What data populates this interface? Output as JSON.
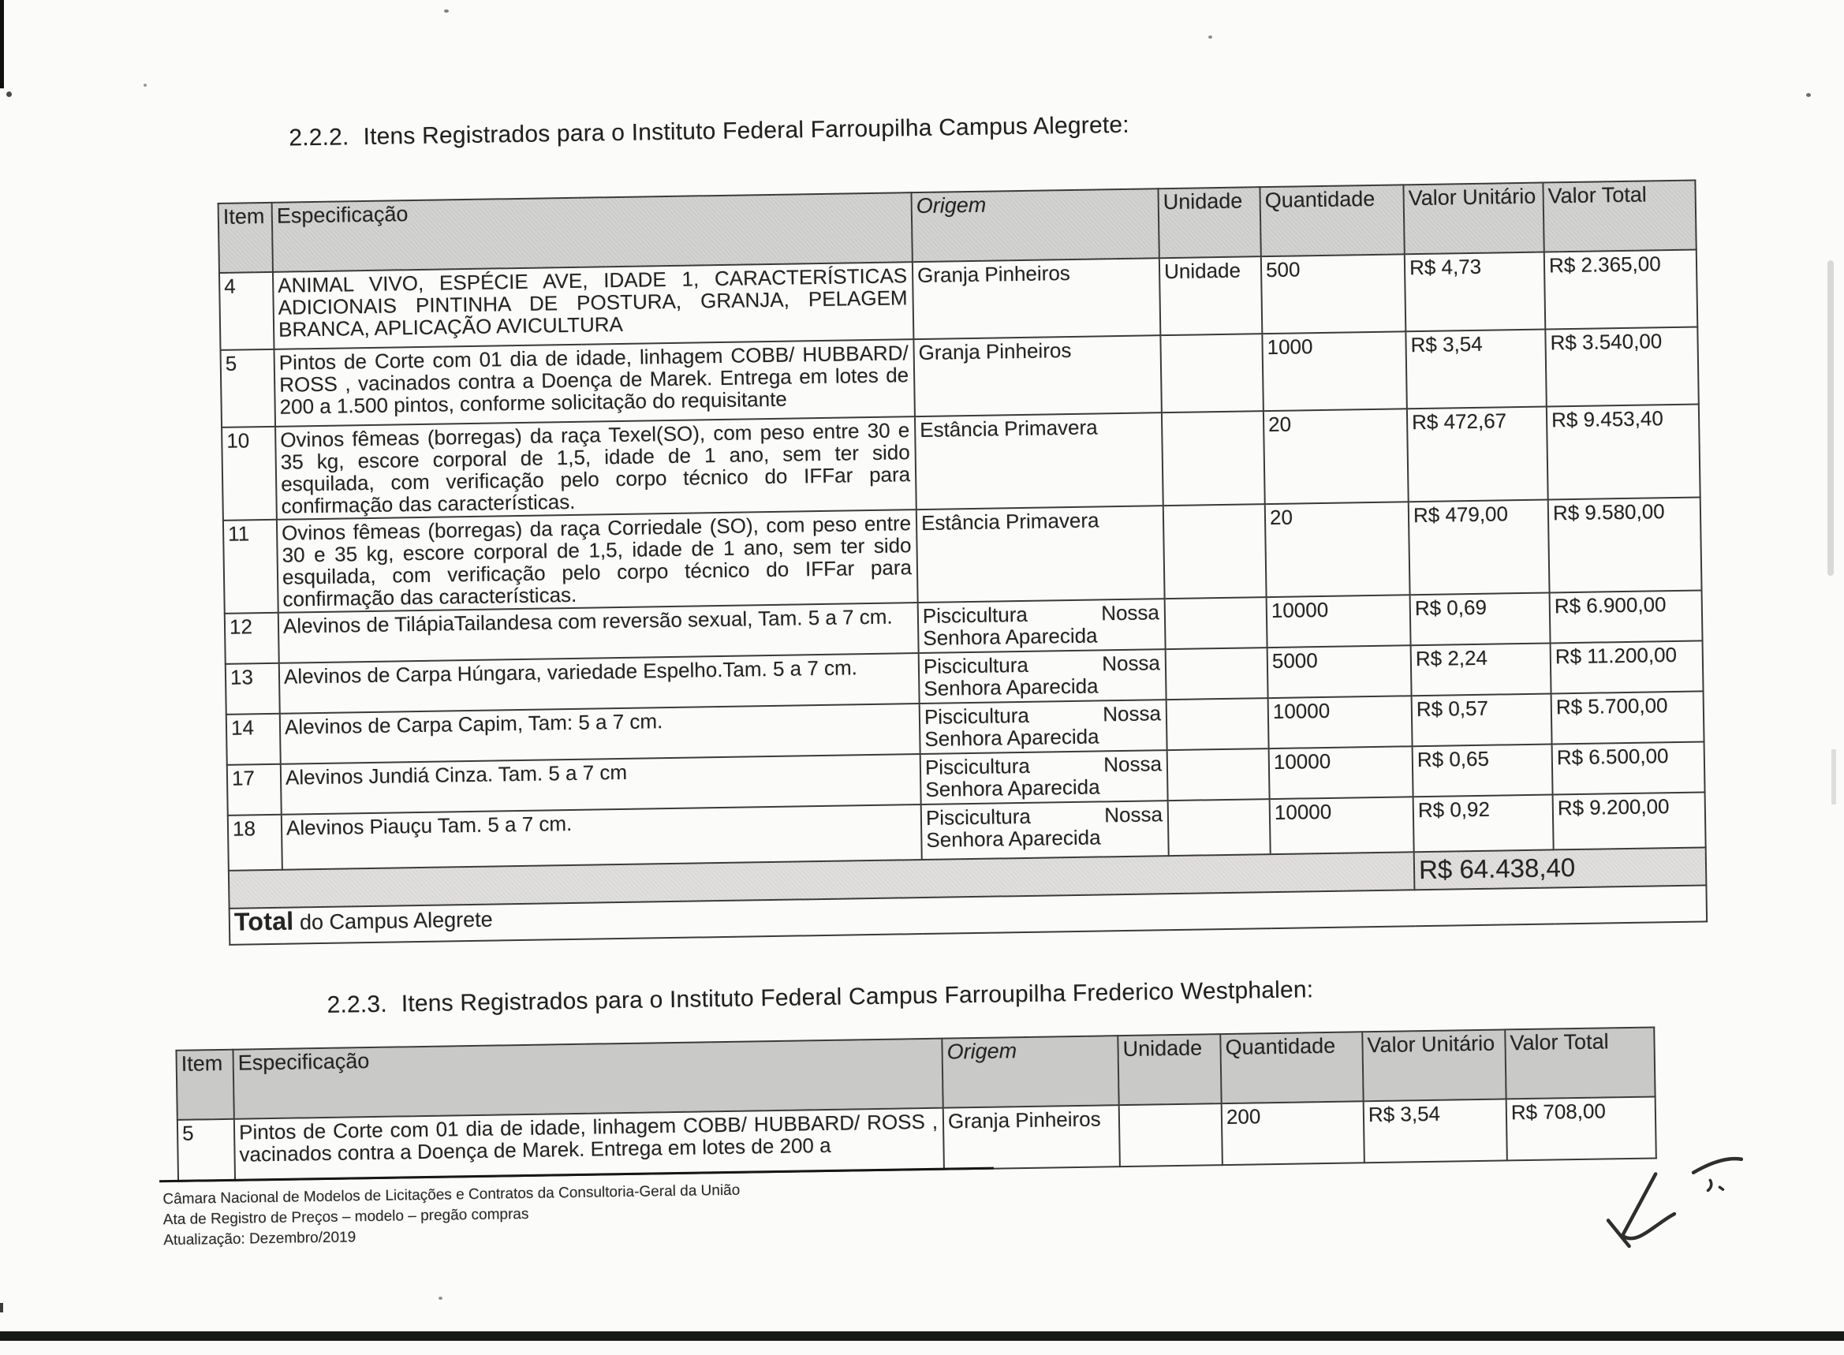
{
  "section1": {
    "number": "2.2.2.",
    "title": "Itens Registrados para o Instituto Federal Farroupilha Campus Alegrete:"
  },
  "section2": {
    "number": "2.2.3.",
    "title": "Itens Registrados para o Instituto Federal Campus Farroupilha Frederico Westphalen:"
  },
  "headers": {
    "item": "Item",
    "espec": "Especificação",
    "origem": "Origem",
    "unidade": "Unidade",
    "quantidade": "Quantidade",
    "valor_unitario": "Valor Unitário",
    "valor_total": "Valor Total"
  },
  "table1": {
    "rows": [
      {
        "item": "4",
        "espec": "ANIMAL VIVO, ESPÉCIE AVE, IDADE 1, CARACTERÍSTICAS ADICIONAIS PINTINHA DE POSTURA, GRANJA, PELAGEM BRANCA, APLICAÇÃO AVICULTURA",
        "origem": "Granja Pinheiros",
        "unidade": "Unidade",
        "quantidade": "500",
        "valor_unitario": "R$ 4,73",
        "valor_total": "R$ 2.365,00"
      },
      {
        "item": "5",
        "espec": "Pintos de Corte com 01 dia de idade, linhagem COBB/ HUBBARD/ ROSS , vacinados contra a Doença de Marek. Entrega em lotes de 200 a 1.500 pintos, conforme solicitação do requisitante",
        "origem": "Granja Pinheiros",
        "unidade": "",
        "quantidade": "1000",
        "valor_unitario": "R$ 3,54",
        "valor_total": "R$ 3.540,00"
      },
      {
        "item": "10",
        "espec": "Ovinos fêmeas (borregas) da raça Texel(SO), com peso entre 30 e 35 kg, escore corporal de 1,5, idade de 1 ano, sem ter sido esquilada, com verificação pelo corpo técnico do IFFar para confirmação das características.",
        "origem": "Estância Primavera",
        "unidade": "",
        "quantidade": "20",
        "valor_unitario": "R$ 472,67",
        "valor_total": "R$ 9.453,40"
      },
      {
        "item": "11",
        "espec": "Ovinos fêmeas (borregas) da raça Corriedale (SO), com peso entre 30 e 35 kg, escore corporal de 1,5, idade de 1 ano, sem ter sido esquilada, com verificação pelo corpo técnico do IFFar para confirmação das características.",
        "origem": "Estância Primavera",
        "unidade": "",
        "quantidade": "20",
        "valor_unitario": "R$ 479,00",
        "valor_total": "R$ 9.580,00"
      },
      {
        "item": "12",
        "espec": "Alevinos de TilápiaTailandesa com reversão sexual, Tam. 5 a 7 cm.",
        "origem": "Piscicultura Nossa|Senhora Aparecida",
        "unidade": "",
        "quantidade": "10000",
        "valor_unitario": "R$ 0,69",
        "valor_total": "R$ 6.900,00"
      },
      {
        "item": "13",
        "espec": "Alevinos de Carpa Húngara, variedade Espelho.Tam. 5 a 7 cm.",
        "origem": "Piscicultura Nossa|Senhora Aparecida",
        "unidade": "",
        "quantidade": "5000",
        "valor_unitario": "R$ 2,24",
        "valor_total": "R$ 11.200,00"
      },
      {
        "item": "14",
        "espec": "Alevinos de Carpa Capim, Tam: 5 a 7 cm.",
        "origem": "Piscicultura Nossa|Senhora Aparecida",
        "unidade": "",
        "quantidade": "10000",
        "valor_unitario": "R$ 0,57",
        "valor_total": "R$ 5.700,00"
      },
      {
        "item": "17",
        "espec": "Alevinos Jundiá Cinza. Tam. 5 a 7 cm",
        "origem": "Piscicultura Nossa|Senhora Aparecida",
        "unidade": "",
        "quantidade": "10000",
        "valor_unitario": "R$ 0,65",
        "valor_total": "R$ 6.500,00"
      },
      {
        "item": "18",
        "espec": "Alevinos Piauçu Tam. 5 a 7 cm.",
        "origem": "Piscicultura Nossa|Senhora Aparecida",
        "unidade": "",
        "quantidade": "10000",
        "valor_unitario": "R$ 0,92",
        "valor_total": "R$ 9.200,00"
      }
    ],
    "total_value": "R$ 64.438,40",
    "total_label_strong": "Total",
    "total_label_rest": " do Campus Alegrete"
  },
  "table2": {
    "rows": [
      {
        "item": "5",
        "espec": "Pintos de Corte com 01 dia de idade, linhagem COBB/ HUBBARD/ ROSS , vacinados contra a Doença de Marek. Entrega em lotes de 200 a",
        "origem": "Granja Pinheiros",
        "unidade": "",
        "quantidade": "200",
        "valor_unitario": "R$ 3,54",
        "valor_total": "R$ 708,00"
      }
    ]
  },
  "footer": {
    "line1": "Câmara Nacional de Modelos de Licitações e Contratos da Consultoria-Geral da União",
    "line2": "Ata de Registro de Preços – modelo – pregão compras",
    "line3": "Atualização: Dezembro/2019"
  }
}
